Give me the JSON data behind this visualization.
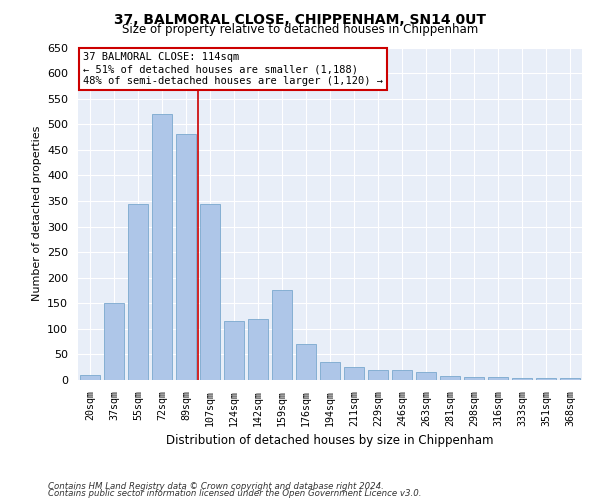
{
  "title": "37, BALMORAL CLOSE, CHIPPENHAM, SN14 0UT",
  "subtitle": "Size of property relative to detached houses in Chippenham",
  "xlabel": "Distribution of detached houses by size in Chippenham",
  "ylabel": "Number of detached properties",
  "categories": [
    "20sqm",
    "37sqm",
    "55sqm",
    "72sqm",
    "89sqm",
    "107sqm",
    "124sqm",
    "142sqm",
    "159sqm",
    "176sqm",
    "194sqm",
    "211sqm",
    "229sqm",
    "246sqm",
    "263sqm",
    "281sqm",
    "298sqm",
    "316sqm",
    "333sqm",
    "351sqm",
    "368sqm"
  ],
  "values": [
    10,
    150,
    345,
    520,
    480,
    345,
    115,
    120,
    175,
    70,
    35,
    25,
    20,
    20,
    15,
    8,
    5,
    5,
    3,
    3,
    3
  ],
  "bar_color": "#aec6e8",
  "bar_edge_color": "#7aa8ce",
  "vline_color": "#cc0000",
  "annotation_text": "37 BALMORAL CLOSE: 114sqm\n← 51% of detached houses are smaller (1,188)\n48% of semi-detached houses are larger (1,120) →",
  "annotation_box_color": "#ffffff",
  "annotation_box_edge": "#cc0000",
  "ylim": [
    0,
    650
  ],
  "yticks": [
    0,
    50,
    100,
    150,
    200,
    250,
    300,
    350,
    400,
    450,
    500,
    550,
    600,
    650
  ],
  "bg_color": "#e8eef8",
  "footnote1": "Contains HM Land Registry data © Crown copyright and database right 2024.",
  "footnote2": "Contains public sector information licensed under the Open Government Licence v3.0."
}
